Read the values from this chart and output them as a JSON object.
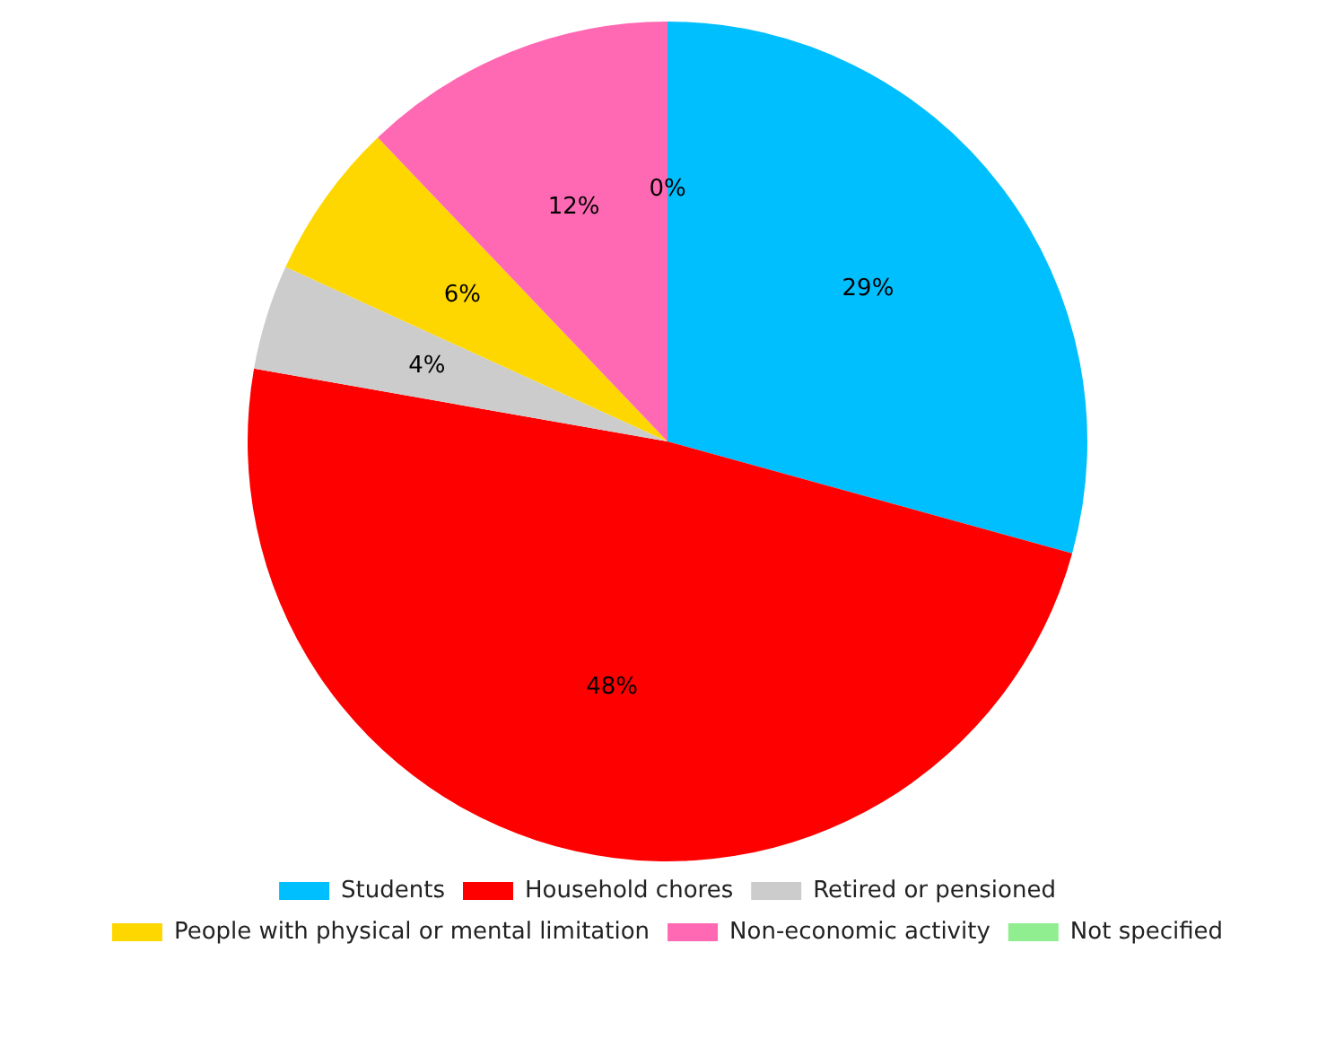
{
  "chart_data": {
    "type": "pie",
    "categories": [
      "Students",
      "Household chores",
      "Retired or pensioned",
      "People with physical or mental limitation",
      "Non-economic activity",
      "Not specified"
    ],
    "values": [
      29,
      48,
      4,
      6,
      12,
      0
    ],
    "colors": [
      "#00bfff",
      "#ff0000",
      "#cccccc",
      "#ffd700",
      "#ff69b4",
      "#90ee90"
    ],
    "value_labels": [
      "29%",
      "48%",
      "4%",
      "6%",
      "12%",
      "0%"
    ],
    "legend": "bottom"
  }
}
